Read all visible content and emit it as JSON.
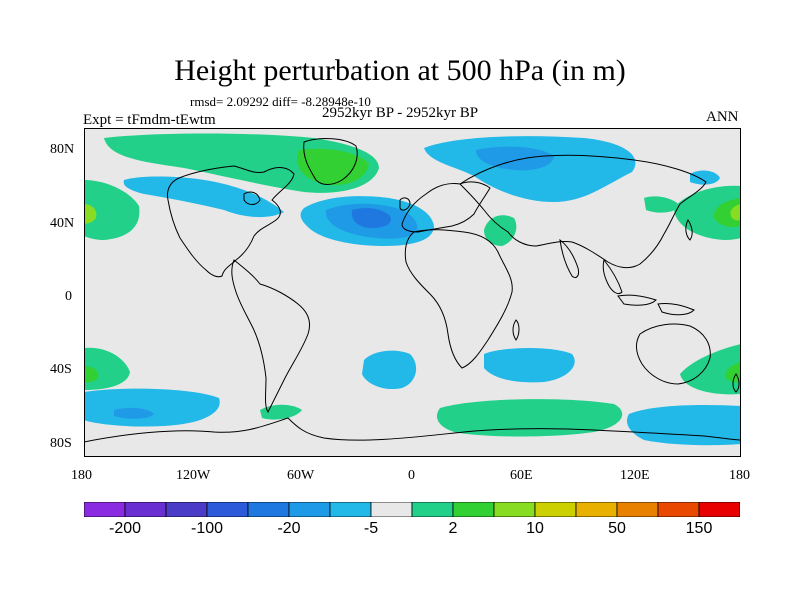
{
  "header": {
    "title": "Height perturbation at 500 hPa (in m)",
    "stats": "rmsd= 2.09292 diff= -8.28948e-10",
    "experiment": "Expt = tFmdm-tEwtm",
    "period": "2952kyr BP - 2952kyr BP",
    "season": "ANN"
  },
  "axes": {
    "lat_ticks": [
      "80N",
      "40N",
      "0",
      "40S",
      "80S"
    ],
    "lon_ticks": [
      "180",
      "120W",
      "60W",
      "0",
      "60E",
      "120E",
      "180"
    ]
  },
  "colorbar": {
    "colors": [
      "#8a2be2",
      "#6a2fd0",
      "#4b3cc8",
      "#2c5ad8",
      "#1f78e0",
      "#1f9ae6",
      "#22b8e8",
      "#e8e8e8",
      "#22d08a",
      "#33d033",
      "#88dd22",
      "#ccd000",
      "#e8b000",
      "#e88000",
      "#e84800",
      "#e80000"
    ],
    "labels": [
      "-200",
      "-100",
      "-20",
      "-5",
      "2",
      "10",
      "50",
      "150"
    ]
  },
  "colors": {
    "background_field": "#e8e8e8",
    "light_blue": "#22b8e8",
    "mid_blue": "#1f9ae6",
    "dark_blue": "#1f78e0",
    "light_green": "#22d08a",
    "green": "#33d033",
    "yellow_green": "#88dd22"
  }
}
